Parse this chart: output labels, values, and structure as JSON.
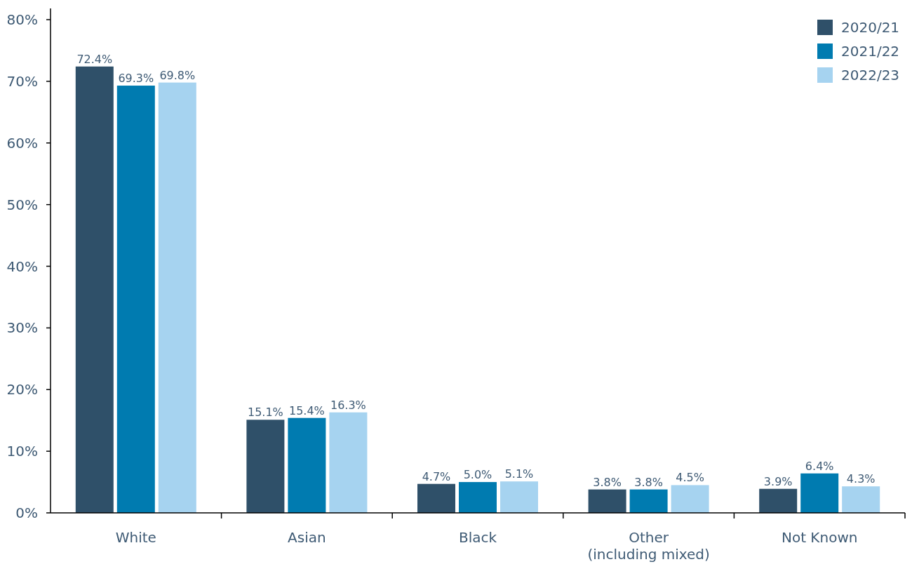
{
  "chart_data": {
    "type": "bar",
    "categories": [
      "White",
      "Asian",
      "Black",
      "Other\n(including mixed)",
      "Not Known"
    ],
    "series": [
      {
        "name": "2020/21",
        "color": "#2f5069",
        "values": [
          72.4,
          15.1,
          4.7,
          3.8,
          3.9
        ],
        "value_labels": [
          "72.4%",
          "15.1%",
          "4.7%",
          "3.8%",
          "3.9%"
        ]
      },
      {
        "name": "2021/22",
        "color": "#007bb0",
        "values": [
          69.3,
          15.4,
          5.0,
          3.8,
          6.4
        ],
        "value_labels": [
          "69.3%",
          "15.4%",
          "5.0%",
          "3.8%",
          "6.4%"
        ]
      },
      {
        "name": "2022/23",
        "color": "#a6d3f0",
        "values": [
          69.8,
          16.3,
          5.1,
          4.5,
          4.3
        ],
        "value_labels": [
          "69.8%",
          "16.3%",
          "5.1%",
          "4.5%",
          "4.3%"
        ]
      }
    ],
    "ylim": [
      0,
      80
    ],
    "yticks": [
      {
        "value": 0,
        "label": "0%"
      },
      {
        "value": 10,
        "label": "10%"
      },
      {
        "value": 20,
        "label": "20%"
      },
      {
        "value": 30,
        "label": "30%"
      },
      {
        "value": 40,
        "label": "40%"
      },
      {
        "value": 50,
        "label": "50%"
      },
      {
        "value": 60,
        "label": "60%"
      },
      {
        "value": 70,
        "label": "70%"
      },
      {
        "value": 80,
        "label": "80%"
      }
    ],
    "grid": false,
    "legend": "top right"
  }
}
